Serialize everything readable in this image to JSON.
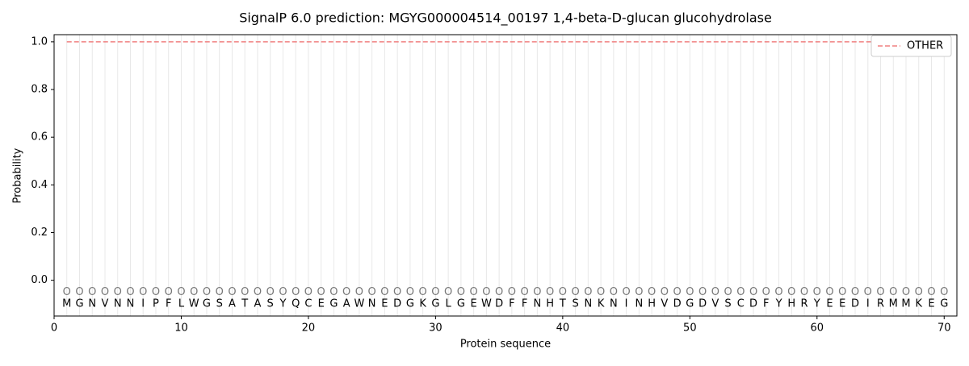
{
  "chart_data": {
    "type": "line",
    "title": "SignalP 6.0 prediction: MGYG000004514_00197 1,4-beta-D-glucan glucohydrolase",
    "x_label": "Protein sequence",
    "y_label": "Probability",
    "x": [
      1,
      2,
      3,
      4,
      5,
      6,
      7,
      8,
      9,
      10,
      11,
      12,
      13,
      14,
      15,
      16,
      17,
      18,
      19,
      20,
      21,
      22,
      23,
      24,
      25,
      26,
      27,
      28,
      29,
      30,
      31,
      32,
      33,
      34,
      35,
      36,
      37,
      38,
      39,
      40,
      41,
      42,
      43,
      44,
      45,
      46,
      47,
      48,
      49,
      50,
      51,
      52,
      53,
      54,
      55,
      56,
      57,
      58,
      59,
      60,
      61,
      62,
      63,
      64,
      65,
      66,
      67,
      68,
      69,
      70
    ],
    "residues": [
      "M",
      "G",
      "N",
      "V",
      "N",
      "N",
      "I",
      "P",
      "F",
      "L",
      "W",
      "G",
      "S",
      "A",
      "T",
      "A",
      "S",
      "Y",
      "Q",
      "C",
      "E",
      "G",
      "A",
      "W",
      "N",
      "E",
      "D",
      "G",
      "K",
      "G",
      "L",
      "G",
      "E",
      "W",
      "D",
      "F",
      "F",
      "N",
      "H",
      "T",
      "S",
      "N",
      "K",
      "N",
      "I",
      "N",
      "H",
      "V",
      "D",
      "G",
      "D",
      "V",
      "S",
      "C",
      "D",
      "F",
      "Y",
      "H",
      "R",
      "Y",
      "E",
      "E",
      "D",
      "I",
      "R",
      "M",
      "M",
      "K",
      "E",
      "G"
    ],
    "predicted_labels": [
      "O",
      "O",
      "O",
      "O",
      "O",
      "O",
      "O",
      "O",
      "O",
      "O",
      "O",
      "O",
      "O",
      "O",
      "O",
      "O",
      "O",
      "O",
      "O",
      "O",
      "O",
      "O",
      "O",
      "O",
      "O",
      "O",
      "O",
      "O",
      "O",
      "O",
      "O",
      "O",
      "O",
      "O",
      "O",
      "O",
      "O",
      "O",
      "O",
      "O",
      "O",
      "O",
      "O",
      "O",
      "O",
      "O",
      "O",
      "O",
      "O",
      "O",
      "O",
      "O",
      "O",
      "O",
      "O",
      "O",
      "O",
      "O",
      "O",
      "O",
      "O",
      "O",
      "O",
      "O",
      "O",
      "O",
      "O",
      "O",
      "O",
      "O"
    ],
    "series": [
      {
        "name": "OTHER",
        "color": "#f08080",
        "values": [
          1,
          1,
          1,
          1,
          1,
          1,
          1,
          1,
          1,
          1,
          1,
          1,
          1,
          1,
          1,
          1,
          1,
          1,
          1,
          1,
          1,
          1,
          1,
          1,
          1,
          1,
          1,
          1,
          1,
          1,
          1,
          1,
          1,
          1,
          1,
          1,
          1,
          1,
          1,
          1,
          1,
          1,
          1,
          1,
          1,
          1,
          1,
          1,
          1,
          1,
          1,
          1,
          1,
          1,
          1,
          1,
          1,
          1,
          1,
          1,
          1,
          1,
          1,
          1,
          1,
          1,
          1,
          1,
          1,
          1
        ]
      }
    ],
    "xlim": [
      0,
      71
    ],
    "ylim": [
      -0.15,
      1.03
    ],
    "xticks": [
      0,
      10,
      20,
      30,
      40,
      50,
      60,
      70
    ],
    "yticks": [
      {
        "value": 0,
        "label": "0.0"
      },
      {
        "value": 0.2,
        "label": "0.2"
      },
      {
        "value": 0.4,
        "label": "0.4"
      },
      {
        "value": 0.6,
        "label": "0.6"
      },
      {
        "value": 0.8,
        "label": "0.8"
      },
      {
        "value": 1,
        "label": "1.0"
      }
    ],
    "legend": "upper right",
    "grid": true
  }
}
